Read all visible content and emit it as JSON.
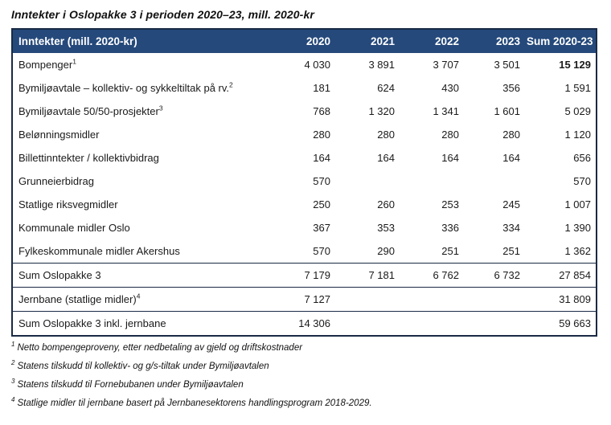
{
  "title": "Inntekter i Oslopakke 3 i perioden 2020–23, mill. 2020-kr",
  "colors": {
    "header_bg": "#25497B",
    "header_text": "#FFFFFF",
    "border": "#1A2A45",
    "text": "#1A1A1A"
  },
  "table": {
    "columns": [
      "Inntekter (mill. 2020-kr)",
      "2020",
      "2021",
      "2022",
      "2023",
      "Sum 2020-23"
    ],
    "rows": [
      {
        "label": "Bompenger",
        "sup": "1",
        "values": [
          "4 030",
          "3 891",
          "3 707",
          "3 501",
          "15 129"
        ],
        "sum_bold": true,
        "section": "body"
      },
      {
        "label": "Bymiljøavtale – kollektiv- og sykkeltiltak på rv.",
        "sup": "2",
        "values": [
          "181",
          "624",
          "430",
          "356",
          "1 591"
        ],
        "sum_bold": false,
        "section": "body"
      },
      {
        "label": "Bymiljøavtale 50/50-prosjekter",
        "sup": "3",
        "values": [
          "768",
          "1 320",
          "1 341",
          "1 601",
          "5 029"
        ],
        "sum_bold": false,
        "section": "body"
      },
      {
        "label": "Belønningsmidler",
        "sup": "",
        "values": [
          "280",
          "280",
          "280",
          "280",
          "1 120"
        ],
        "sum_bold": false,
        "section": "body"
      },
      {
        "label": "Billettinntekter / kollektivbidrag",
        "sup": "",
        "values": [
          "164",
          "164",
          "164",
          "164",
          "656"
        ],
        "sum_bold": false,
        "section": "body"
      },
      {
        "label": "Grunneierbidrag",
        "sup": "",
        "values": [
          "570",
          "",
          "",
          "",
          "570"
        ],
        "sum_bold": false,
        "section": "body"
      },
      {
        "label": "Statlige riksvegmidler",
        "sup": "",
        "values": [
          "250",
          "260",
          "253",
          "245",
          "1 007"
        ],
        "sum_bold": false,
        "section": "body"
      },
      {
        "label": "Kommunale midler Oslo",
        "sup": "",
        "values": [
          "367",
          "353",
          "336",
          "334",
          "1 390"
        ],
        "sum_bold": false,
        "section": "body"
      },
      {
        "label": "Fylkeskommunale midler Akershus",
        "sup": "",
        "values": [
          "570",
          "290",
          "251",
          "251",
          "1 362"
        ],
        "sum_bold": false,
        "section": "body"
      },
      {
        "label": "Sum Oslopakke 3",
        "sup": "",
        "values": [
          "7 179",
          "7 181",
          "6 762",
          "6 732",
          "27 854"
        ],
        "sum_bold": false,
        "section": "sum"
      },
      {
        "label": "Jernbane (statlige midler)",
        "sup": "4",
        "values": [
          "7 127",
          "",
          "",
          "",
          "31 809"
        ],
        "sum_bold": false,
        "section": "sum"
      },
      {
        "label": "Sum Oslopakke 3 inkl. jernbane",
        "sup": "",
        "values": [
          "14 306",
          "",
          "",
          "",
          "59 663"
        ],
        "sum_bold": false,
        "section": "sum"
      }
    ]
  },
  "footnotes": [
    {
      "sup": "1",
      "text": "Netto bompengeproveny, etter nedbetaling av gjeld og driftskostnader"
    },
    {
      "sup": "2",
      "text": "Statens tilskudd til kollektiv- og g/s-tiltak under Bymiljøavtalen"
    },
    {
      "sup": "3",
      "text": "Statens tilskudd til Fornebubanen under Bymiljøavtalen"
    },
    {
      "sup": "4",
      "text": "Statlige midler til jernbane basert på Jernbanesektorens handlingsprogram 2018-2029."
    }
  ]
}
